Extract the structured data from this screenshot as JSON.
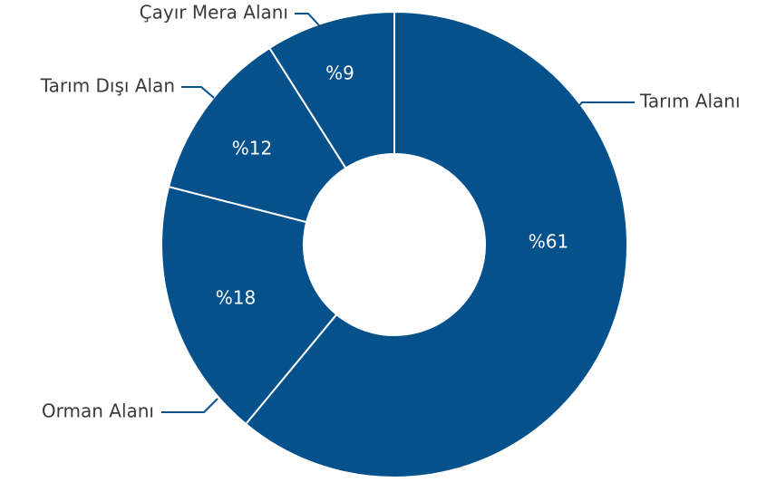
{
  "chart_data": {
    "type": "donut",
    "categories": [
      "Tarım Alanı",
      "Orman Alanı",
      "Tarım Dışı Alan",
      "Çayır Mera Alanı"
    ],
    "values": [
      61,
      18,
      12,
      9
    ],
    "value_labels": [
      "%61",
      "%18",
      "%12",
      "%9"
    ],
    "color": "#04518c"
  }
}
